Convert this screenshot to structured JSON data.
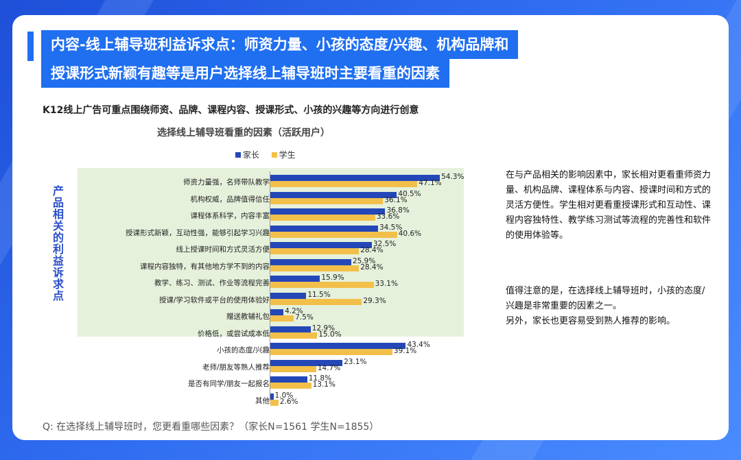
{
  "title": {
    "line1": "内容-线上辅导班利益诉求点：师资力量、小孩的态度/兴趣、机构品牌和",
    "line2": "授课形式新颖有趣等是用户选择线上辅导班时主要看重的因素"
  },
  "subtitle": "K12线上广告可重点围绕师资、品牌、课程内容、授课形式、小孩的兴趣等方向进行创意",
  "side_label": "产品相关的利益诉求点",
  "chart_data": {
    "type": "bar",
    "orientation": "horizontal",
    "title": "选择线上辅导班看重的因素（活跃用户）",
    "legend_position": "top",
    "categories": [
      "师资力量强，名师带队教学",
      "机构权威，品牌值得信任",
      "课程体系科学，内容丰富",
      "授课形式新颖，互动性强，能够引起学习兴趣",
      "线上授课时间和方式灵活方便",
      "课程内容独特，有其他地方学不到的内容",
      "教学、练习、测试、作业等流程完善",
      "授课/学习软件或平台的使用体验好",
      "赠送教辅礼包",
      "价格低，或尝试成本低",
      "小孩的态度/兴趣",
      "老师/朋友等熟人推荐",
      "是否有同学/朋友一起报名",
      "其他"
    ],
    "series": [
      {
        "name": "家长",
        "color": "#2447b8",
        "values": [
          54.3,
          40.5,
          36.8,
          34.5,
          32.5,
          25.9,
          15.9,
          11.5,
          4.2,
          12.9,
          43.4,
          23.1,
          11.8,
          1.0
        ],
        "labels": [
          "54.3%",
          "40.5%",
          "36.8%",
          "34.5%",
          "32.5%",
          "25.9%",
          "15.9%",
          "11.5%",
          "4.2%",
          "12.9%",
          "43.4%",
          "23.1%",
          "11.8%",
          "1.0%"
        ]
      },
      {
        "name": "学生",
        "color": "#f2c04a",
        "values": [
          47.1,
          36.1,
          33.6,
          40.6,
          28.4,
          28.4,
          33.1,
          29.3,
          7.5,
          15.0,
          39.1,
          14.7,
          13.1,
          2.6
        ],
        "labels": [
          "47.1%",
          "36.1%",
          "33.6%",
          "40.6%",
          "28.4%",
          "28.4%",
          "33.1%",
          "29.3%",
          "7.5%",
          "15.0%",
          "39.1%",
          "14.7%",
          "13.1%",
          "2.6%"
        ]
      }
    ],
    "product_group_count": 10
  },
  "notes": {
    "para1": "在与产品相关的影响因素中，家长相对更看重师资力量、机构品牌、课程体系与内容、授课时间和方式的灵活方便性。学生相对更看重授课形式和互动性、课程内容独特性、教学练习测试等流程的完善性和软件的使用体验等。",
    "para2": "值得注意的是，在选择线上辅导班时，小孩的态度/兴趣是非常重要的因素之一。",
    "para3": "另外，家长也更容易受到熟人推荐的影响。"
  },
  "footer": "Q:  在选择线上辅导班时，您更看重哪些因素？（家长N=1561      学生N=1855）"
}
